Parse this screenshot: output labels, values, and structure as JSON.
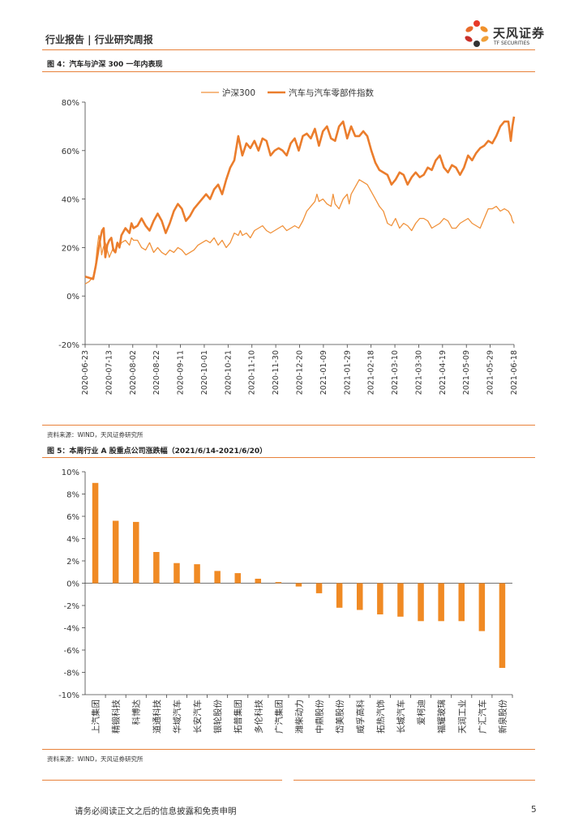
{
  "header": {
    "title": "行业报告 | 行业研究周报"
  },
  "logo": {
    "name": "天风证券",
    "sub": "TF SECURITIES"
  },
  "figure4": {
    "title": "图 4：汽车与沪深 300 一年内表现",
    "source": "资料来源：WIND，天风证券研究所"
  },
  "figure5": {
    "title": "图 5：本周行业 A 股重点公司涨跌幅（2021/6/14-2021/6/20）",
    "source": "资料来源：WIND，天风证券研究所"
  },
  "footer": {
    "disclaimer": "请务必阅读正文之后的信息披露和免责申明",
    "page": "5"
  },
  "colors": {
    "accent": "#e8813a",
    "bar": "#f08a24",
    "line_thin": "#f0913a",
    "line_thick": "#eb7d2c"
  },
  "chart_data": [
    {
      "type": "line",
      "title": "",
      "legend_position": "top",
      "x_labels": [
        "2020-06-23",
        "2020-07-13",
        "2020-08-02",
        "2020-08-22",
        "2020-09-11",
        "2020-10-01",
        "2020-10-21",
        "2020-11-10",
        "2020-11-30",
        "2020-12-20",
        "2021-01-09",
        "2021-01-29",
        "2021-02-18",
        "2021-03-10",
        "2021-03-30",
        "2021-04-19",
        "2021-05-09",
        "2021-05-29",
        "2021-06-18"
      ],
      "y_ticks": [
        "80%",
        "60%",
        "40%",
        "20%",
        "0%",
        "-20%"
      ],
      "ylim": [
        -20,
        80
      ],
      "series": [
        {
          "name": "沪深300",
          "style": "thin",
          "points": [
            [
              0,
              5
            ],
            [
              1,
              6
            ],
            [
              2,
              8
            ],
            [
              2.6,
              13
            ],
            [
              3,
              20
            ],
            [
              3.4,
              25
            ],
            [
              3.8,
              22
            ],
            [
              4.1,
              17
            ],
            [
              4.5,
              20
            ],
            [
              5,
              22
            ],
            [
              5.5,
              19
            ],
            [
              6,
              16
            ],
            [
              6.5,
              18
            ],
            [
              7,
              20
            ],
            [
              7.5,
              18
            ],
            [
              8,
              21
            ],
            [
              8.5,
              20
            ],
            [
              9,
              22
            ],
            [
              10,
              23
            ],
            [
              11,
              21
            ],
            [
              11.5,
              24
            ],
            [
              12,
              23
            ],
            [
              13,
              23
            ],
            [
              14,
              20
            ],
            [
              15,
              19
            ],
            [
              16,
              22
            ],
            [
              17,
              18
            ],
            [
              18,
              20
            ],
            [
              19,
              18
            ],
            [
              20,
              17
            ],
            [
              21,
              19
            ],
            [
              22,
              18
            ],
            [
              23,
              20
            ],
            [
              24,
              19
            ],
            [
              25,
              17
            ],
            [
              26,
              18
            ],
            [
              27,
              19
            ],
            [
              28,
              21
            ],
            [
              29,
              22
            ],
            [
              30,
              23
            ],
            [
              31,
              22
            ],
            [
              32,
              24
            ],
            [
              33,
              21
            ],
            [
              34,
              23
            ],
            [
              35,
              20
            ],
            [
              36,
              22
            ],
            [
              37,
              26
            ],
            [
              38,
              25
            ],
            [
              38.5,
              27
            ],
            [
              39,
              25
            ],
            [
              40,
              26
            ],
            [
              41,
              24
            ],
            [
              42,
              27
            ],
            [
              43,
              28
            ],
            [
              44,
              29
            ],
            [
              45,
              27
            ],
            [
              46,
              26
            ],
            [
              47,
              27
            ],
            [
              48,
              28
            ],
            [
              49,
              29
            ],
            [
              50,
              27
            ],
            [
              51,
              28
            ],
            [
              52,
              29
            ],
            [
              53,
              28
            ],
            [
              54,
              31
            ],
            [
              55,
              35
            ],
            [
              56,
              37
            ],
            [
              57,
              39
            ],
            [
              57.5,
              42
            ],
            [
              58,
              39
            ],
            [
              59,
              40
            ],
            [
              60,
              38
            ],
            [
              61,
              37
            ],
            [
              61.5,
              42
            ],
            [
              62,
              38
            ],
            [
              63,
              36
            ],
            [
              64,
              40
            ],
            [
              65,
              42
            ],
            [
              65.5,
              38
            ],
            [
              66,
              42
            ],
            [
              67,
              45
            ],
            [
              68,
              48
            ],
            [
              69,
              47
            ],
            [
              70,
              46
            ],
            [
              71,
              43
            ],
            [
              72,
              40
            ],
            [
              73,
              37
            ],
            [
              74,
              35
            ],
            [
              75,
              30
            ],
            [
              76,
              29
            ],
            [
              77,
              32
            ],
            [
              78,
              28
            ],
            [
              79,
              30
            ],
            [
              80,
              29
            ],
            [
              81,
              27
            ],
            [
              82,
              30
            ],
            [
              83,
              32
            ],
            [
              84,
              32
            ],
            [
              85,
              31
            ],
            [
              86,
              28
            ],
            [
              87,
              29
            ],
            [
              88,
              30
            ],
            [
              89,
              32
            ],
            [
              90,
              31
            ],
            [
              91,
              28
            ],
            [
              92,
              28
            ],
            [
              93,
              30
            ],
            [
              94,
              31
            ],
            [
              95,
              32
            ],
            [
              96,
              30
            ],
            [
              97,
              29
            ],
            [
              98,
              28
            ],
            [
              99,
              32
            ],
            [
              100,
              36
            ],
            [
              101,
              36
            ],
            [
              102,
              37
            ],
            [
              103,
              35
            ],
            [
              104,
              36
            ],
            [
              105,
              35
            ],
            [
              105.7,
              33
            ],
            [
              106,
              31
            ],
            [
              106.4,
              30
            ]
          ]
        },
        {
          "name": "汽车与汽车零部件指数",
          "style": "thick",
          "points": [
            [
              0,
              8
            ],
            [
              1,
              7.5
            ],
            [
              2,
              7
            ],
            [
              2.6,
              12
            ],
            [
              3,
              16
            ],
            [
              3.4,
              20
            ],
            [
              3.8,
              24
            ],
            [
              4.2,
              27
            ],
            [
              4.6,
              28
            ],
            [
              5,
              16
            ],
            [
              5.5,
              21
            ],
            [
              6,
              23
            ],
            [
              6.5,
              24
            ],
            [
              7,
              19
            ],
            [
              7.5,
              18
            ],
            [
              8,
              22
            ],
            [
              8.5,
              20
            ],
            [
              9,
              25
            ],
            [
              10,
              28
            ],
            [
              11,
              26
            ],
            [
              11.5,
              30
            ],
            [
              12,
              28
            ],
            [
              13,
              29
            ],
            [
              14,
              32
            ],
            [
              15,
              29
            ],
            [
              16,
              27
            ],
            [
              17,
              31
            ],
            [
              18,
              34
            ],
            [
              19,
              31
            ],
            [
              20,
              26
            ],
            [
              21,
              30
            ],
            [
              22,
              35
            ],
            [
              23,
              38
            ],
            [
              24,
              36
            ],
            [
              25,
              31
            ],
            [
              26,
              33
            ],
            [
              27,
              36
            ],
            [
              28,
              38
            ],
            [
              29,
              40
            ],
            [
              30,
              42
            ],
            [
              31,
              40
            ],
            [
              32,
              44
            ],
            [
              33,
              46
            ],
            [
              34,
              42
            ],
            [
              35,
              48
            ],
            [
              36,
              53
            ],
            [
              37,
              56
            ],
            [
              38,
              66
            ],
            [
              39,
              58
            ],
            [
              40,
              63
            ],
            [
              41,
              61
            ],
            [
              42,
              64
            ],
            [
              43,
              60
            ],
            [
              44,
              65
            ],
            [
              45,
              64
            ],
            [
              46,
              58
            ],
            [
              47,
              60
            ],
            [
              48,
              61
            ],
            [
              49,
              60
            ],
            [
              50,
              58
            ],
            [
              51,
              63
            ],
            [
              52,
              65
            ],
            [
              53,
              60
            ],
            [
              54,
              66
            ],
            [
              55,
              67
            ],
            [
              56,
              65
            ],
            [
              57,
              69
            ],
            [
              58,
              62
            ],
            [
              59,
              68
            ],
            [
              60,
              70
            ],
            [
              61,
              65
            ],
            [
              62,
              64
            ],
            [
              63,
              70
            ],
            [
              64,
              72
            ],
            [
              65,
              65
            ],
            [
              66,
              70
            ],
            [
              67,
              66
            ],
            [
              68,
              66
            ],
            [
              69,
              68
            ],
            [
              70,
              66
            ],
            [
              71,
              60
            ],
            [
              72,
              55
            ],
            [
              73,
              52
            ],
            [
              74,
              51
            ],
            [
              75,
              50
            ],
            [
              76,
              46
            ],
            [
              77,
              48
            ],
            [
              78,
              51
            ],
            [
              79,
              50
            ],
            [
              80,
              46
            ],
            [
              81,
              49
            ],
            [
              82,
              51
            ],
            [
              83,
              49
            ],
            [
              84,
              50
            ],
            [
              85,
              53
            ],
            [
              86,
              52
            ],
            [
              87,
              56
            ],
            [
              88,
              58
            ],
            [
              89,
              53
            ],
            [
              90,
              51
            ],
            [
              91,
              54
            ],
            [
              92,
              53
            ],
            [
              93,
              50
            ],
            [
              94,
              53
            ],
            [
              95,
              58
            ],
            [
              96,
              56
            ],
            [
              97,
              59
            ],
            [
              98,
              61
            ],
            [
              99,
              62
            ],
            [
              100,
              64
            ],
            [
              101,
              63
            ],
            [
              102,
              66
            ],
            [
              103,
              70
            ],
            [
              104,
              72
            ],
            [
              105,
              72
            ],
            [
              105.6,
              64
            ],
            [
              106,
              70
            ],
            [
              106.4,
              74
            ]
          ]
        }
      ]
    },
    {
      "type": "bar",
      "ylim": [
        -10,
        10
      ],
      "y_ticks": [
        "10%",
        "8%",
        "6%",
        "4%",
        "2%",
        "0%",
        "-2%",
        "-4%",
        "-6%",
        "-8%",
        "-10%"
      ],
      "categories": [
        "上汽集团",
        "精锻科技",
        "科博达",
        "道通科技",
        "华域汽车",
        "长安汽车",
        "银轮股份",
        "拓普集团",
        "多伦科技",
        "广汽集团",
        "潍柴动力",
        "中鼎股份",
        "岱美股份",
        "威孚高科",
        "拓热汽饰",
        "长城汽车",
        "爱柯迪",
        "福耀玻璃",
        "天润工业",
        "广汇汽车",
        "新泉股份"
      ],
      "values": [
        9.0,
        5.6,
        5.5,
        2.8,
        1.8,
        1.7,
        1.1,
        0.9,
        0.4,
        0.1,
        -0.3,
        -0.9,
        -2.2,
        -2.4,
        -2.8,
        -3.0,
        -3.4,
        -3.4,
        -3.4,
        -4.3,
        -7.6
      ]
    }
  ]
}
